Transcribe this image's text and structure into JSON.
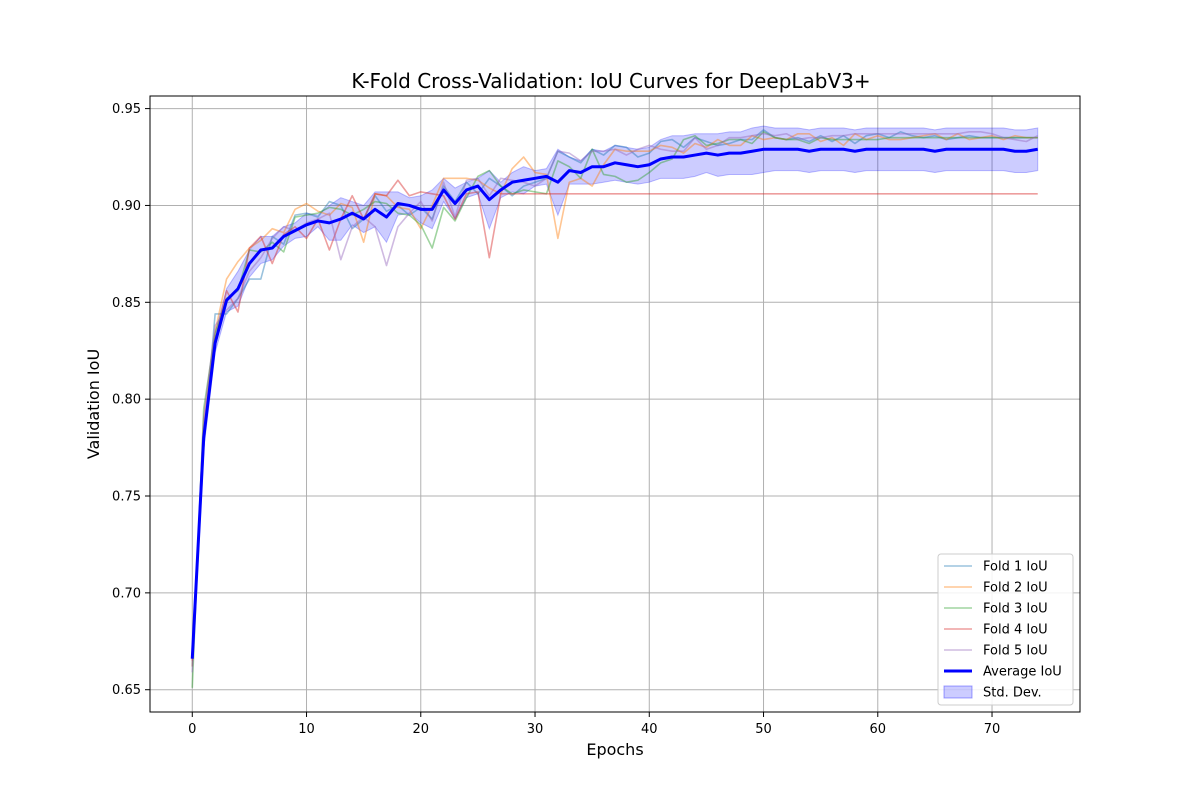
{
  "chart_data": {
    "type": "line",
    "title": "K-Fold Cross-Validation: IoU Curves for DeepLabV3+",
    "xlabel": "Epochs",
    "ylabel": "Validation IoU",
    "xlim": [
      -3.7,
      77.7
    ],
    "ylim": [
      0.6385,
      0.9565
    ],
    "xticks": [
      0,
      10,
      20,
      30,
      40,
      50,
      60,
      70
    ],
    "yticks": [
      0.65,
      0.7,
      0.75,
      0.8,
      0.85,
      0.9,
      0.95
    ],
    "xtick_labels": [
      "0",
      "10",
      "20",
      "30",
      "40",
      "50",
      "60",
      "70"
    ],
    "ytick_labels": [
      "0.65",
      "0.70",
      "0.75",
      "0.80",
      "0.85",
      "0.90",
      "0.95"
    ],
    "grid": true,
    "legend_position": "lower-right",
    "legend": [
      "Fold 1 IoU",
      "Fold 2 IoU",
      "Fold 3 IoU",
      "Fold 4 IoU",
      "Fold 5 IoU",
      "Average IoU",
      "Std. Dev."
    ],
    "x": [
      0,
      1,
      2,
      3,
      4,
      5,
      6,
      7,
      8,
      9,
      10,
      11,
      12,
      13,
      14,
      15,
      16,
      17,
      18,
      19,
      20,
      21,
      22,
      23,
      24,
      25,
      26,
      27,
      28,
      29,
      30,
      31,
      32,
      33,
      34,
      35,
      36,
      37,
      38,
      39,
      40,
      41,
      42,
      43,
      44,
      45,
      46,
      47,
      48,
      49,
      50,
      51,
      52,
      53,
      54,
      55,
      56,
      57,
      58,
      59,
      60,
      61,
      62,
      63,
      64,
      65,
      66,
      67,
      68,
      69,
      70,
      71,
      72,
      73,
      74
    ],
    "series": [
      {
        "name": "Fold 1 IoU",
        "color": "#1f77b4",
        "values": [
          0.662,
          0.775,
          0.844,
          0.844,
          0.852,
          0.862,
          0.862,
          0.884,
          0.88,
          0.895,
          0.896,
          0.894,
          0.902,
          0.9,
          0.888,
          0.893,
          0.905,
          0.897,
          0.9,
          0.895,
          0.899,
          0.893,
          0.91,
          0.902,
          0.912,
          0.906,
          0.914,
          0.91,
          0.905,
          0.91,
          0.912,
          0.914,
          0.928,
          0.925,
          0.922,
          0.929,
          0.926,
          0.931,
          0.93,
          0.925,
          0.927,
          0.933,
          0.934,
          0.93,
          0.935,
          0.933,
          0.931,
          0.932,
          0.934,
          0.934,
          0.939,
          0.935,
          0.934,
          0.935,
          0.933,
          0.936,
          0.933,
          0.936,
          0.932,
          0.936,
          0.937,
          0.935,
          0.938,
          0.936,
          0.935,
          0.936,
          0.934,
          0.935,
          0.936,
          0.935,
          0.935,
          0.935,
          0.935,
          0.935,
          0.935
        ]
      },
      {
        "name": "Fold 2 IoU",
        "color": "#ff7f0e",
        "values": [
          0.662,
          0.79,
          0.835,
          0.862,
          0.871,
          0.878,
          0.882,
          0.888,
          0.886,
          0.898,
          0.901,
          0.897,
          0.895,
          0.901,
          0.899,
          0.881,
          0.906,
          0.905,
          0.899,
          0.898,
          0.888,
          0.9,
          0.914,
          0.914,
          0.914,
          0.913,
          0.909,
          0.906,
          0.919,
          0.925,
          0.917,
          0.916,
          0.883,
          0.912,
          0.914,
          0.91,
          0.921,
          0.929,
          0.928,
          0.928,
          0.928,
          0.931,
          0.93,
          0.927,
          0.932,
          0.93,
          0.934,
          0.931,
          0.931,
          0.936,
          0.934,
          0.935,
          0.934,
          0.937,
          0.937,
          0.933,
          0.935,
          0.931,
          0.937,
          0.934,
          0.936,
          0.934,
          0.934,
          0.935,
          0.936,
          0.937,
          0.934,
          0.937,
          0.934,
          0.935,
          0.936,
          0.934,
          0.936,
          0.935,
          0.935
        ]
      },
      {
        "name": "Fold 3 IoU",
        "color": "#2ca02c",
        "values": [
          0.651,
          0.795,
          0.834,
          0.852,
          0.856,
          0.877,
          0.876,
          0.881,
          0.876,
          0.894,
          0.895,
          0.896,
          0.899,
          0.898,
          0.895,
          0.898,
          0.902,
          0.901,
          0.896,
          0.895,
          0.89,
          0.878,
          0.899,
          0.892,
          0.904,
          0.915,
          0.918,
          0.91,
          0.906,
          0.908,
          0.907,
          0.906,
          0.923,
          0.92,
          0.914,
          0.929,
          0.916,
          0.915,
          0.912,
          0.913,
          0.917,
          0.922,
          0.924,
          0.934,
          0.936,
          0.931,
          0.932,
          0.934,
          0.934,
          0.932,
          0.938,
          0.935,
          0.934,
          0.934,
          0.932,
          0.935,
          0.934,
          0.934,
          0.934,
          0.934,
          0.934,
          0.935,
          0.935,
          0.935,
          0.935,
          0.935,
          0.935,
          0.935,
          0.935,
          0.935,
          0.935,
          0.935,
          0.935,
          0.935,
          0.935
        ]
      },
      {
        "name": "Fold 4 IoU",
        "color": "#d62728",
        "values": [
          0.665,
          0.782,
          0.83,
          0.856,
          0.845,
          0.878,
          0.884,
          0.87,
          0.885,
          0.889,
          0.883,
          0.893,
          0.877,
          0.893,
          0.905,
          0.893,
          0.906,
          0.905,
          0.913,
          0.905,
          0.907,
          0.906,
          0.905,
          0.893,
          0.906,
          0.907,
          0.873,
          0.906,
          0.906,
          0.906,
          0.906,
          0.906,
          0.906,
          0.906,
          0.906,
          0.906,
          0.906,
          0.906,
          0.906,
          0.906,
          0.906,
          0.906,
          0.906,
          0.906,
          0.906,
          0.906,
          0.906,
          0.906,
          0.906,
          0.906,
          0.906,
          0.906,
          0.906,
          0.906,
          0.906,
          0.906,
          0.906,
          0.906,
          0.906,
          0.906,
          0.906,
          0.906,
          0.906,
          0.906,
          0.906,
          0.906,
          0.906,
          0.906,
          0.906,
          0.906,
          0.906,
          0.906,
          0.906,
          0.906,
          0.906
        ]
      },
      {
        "name": "Fold 5 IoU",
        "color": "#9467bd",
        "values": [
          0.659,
          0.79,
          0.838,
          0.846,
          0.852,
          0.866,
          0.873,
          0.883,
          0.889,
          0.887,
          0.891,
          0.893,
          0.896,
          0.872,
          0.889,
          0.894,
          0.889,
          0.869,
          0.889,
          0.896,
          0.902,
          0.892,
          0.912,
          0.894,
          0.913,
          0.914,
          0.905,
          0.914,
          0.913,
          0.912,
          0.91,
          0.914,
          0.928,
          0.927,
          0.923,
          0.928,
          0.928,
          0.929,
          0.926,
          0.929,
          0.931,
          0.929,
          0.928,
          0.928,
          0.935,
          0.929,
          0.931,
          0.935,
          0.935,
          0.936,
          0.937,
          0.936,
          0.937,
          0.934,
          0.935,
          0.935,
          0.936,
          0.936,
          0.937,
          0.937,
          0.937,
          0.937,
          0.937,
          0.937,
          0.937,
          0.937,
          0.937,
          0.937,
          0.938,
          0.938,
          0.937,
          0.935,
          0.934,
          0.933,
          0.936
        ]
      }
    ],
    "average": {
      "name": "Average IoU",
      "color": "#0000ff",
      "values": [
        0.666,
        0.78,
        0.829,
        0.851,
        0.857,
        0.87,
        0.877,
        0.878,
        0.884,
        0.887,
        0.89,
        0.892,
        0.891,
        0.893,
        0.896,
        0.893,
        0.898,
        0.894,
        0.901,
        0.9,
        0.898,
        0.898,
        0.908,
        0.901,
        0.908,
        0.91,
        0.903,
        0.908,
        0.912,
        0.913,
        0.914,
        0.915,
        0.912,
        0.918,
        0.917,
        0.92,
        0.92,
        0.922,
        0.921,
        0.92,
        0.921,
        0.924,
        0.925,
        0.925,
        0.926,
        0.927,
        0.926,
        0.927,
        0.927,
        0.928,
        0.929,
        0.929,
        0.929,
        0.929,
        0.928,
        0.929,
        0.929,
        0.929,
        0.928,
        0.929,
        0.929,
        0.929,
        0.929,
        0.929,
        0.929,
        0.928,
        0.929,
        0.929,
        0.929,
        0.929,
        0.929,
        0.929,
        0.928,
        0.928,
        0.929
      ]
    },
    "std_band": {
      "name": "Std. Dev.",
      "color": "#0000ff",
      "values": [
        0.004,
        0.006,
        0.005,
        0.006,
        0.009,
        0.007,
        0.007,
        0.006,
        0.005,
        0.004,
        0.006,
        0.003,
        0.009,
        0.011,
        0.006,
        0.007,
        0.009,
        0.013,
        0.006,
        0.004,
        0.007,
        0.01,
        0.006,
        0.008,
        0.004,
        0.004,
        0.015,
        0.004,
        0.005,
        0.007,
        0.004,
        0.004,
        0.017,
        0.007,
        0.006,
        0.009,
        0.008,
        0.009,
        0.009,
        0.009,
        0.009,
        0.01,
        0.011,
        0.011,
        0.011,
        0.01,
        0.011,
        0.011,
        0.011,
        0.012,
        0.012,
        0.011,
        0.011,
        0.011,
        0.011,
        0.011,
        0.011,
        0.011,
        0.011,
        0.011,
        0.011,
        0.011,
        0.011,
        0.011,
        0.011,
        0.011,
        0.011,
        0.011,
        0.011,
        0.011,
        0.011,
        0.011,
        0.011,
        0.011,
        0.011
      ]
    }
  }
}
